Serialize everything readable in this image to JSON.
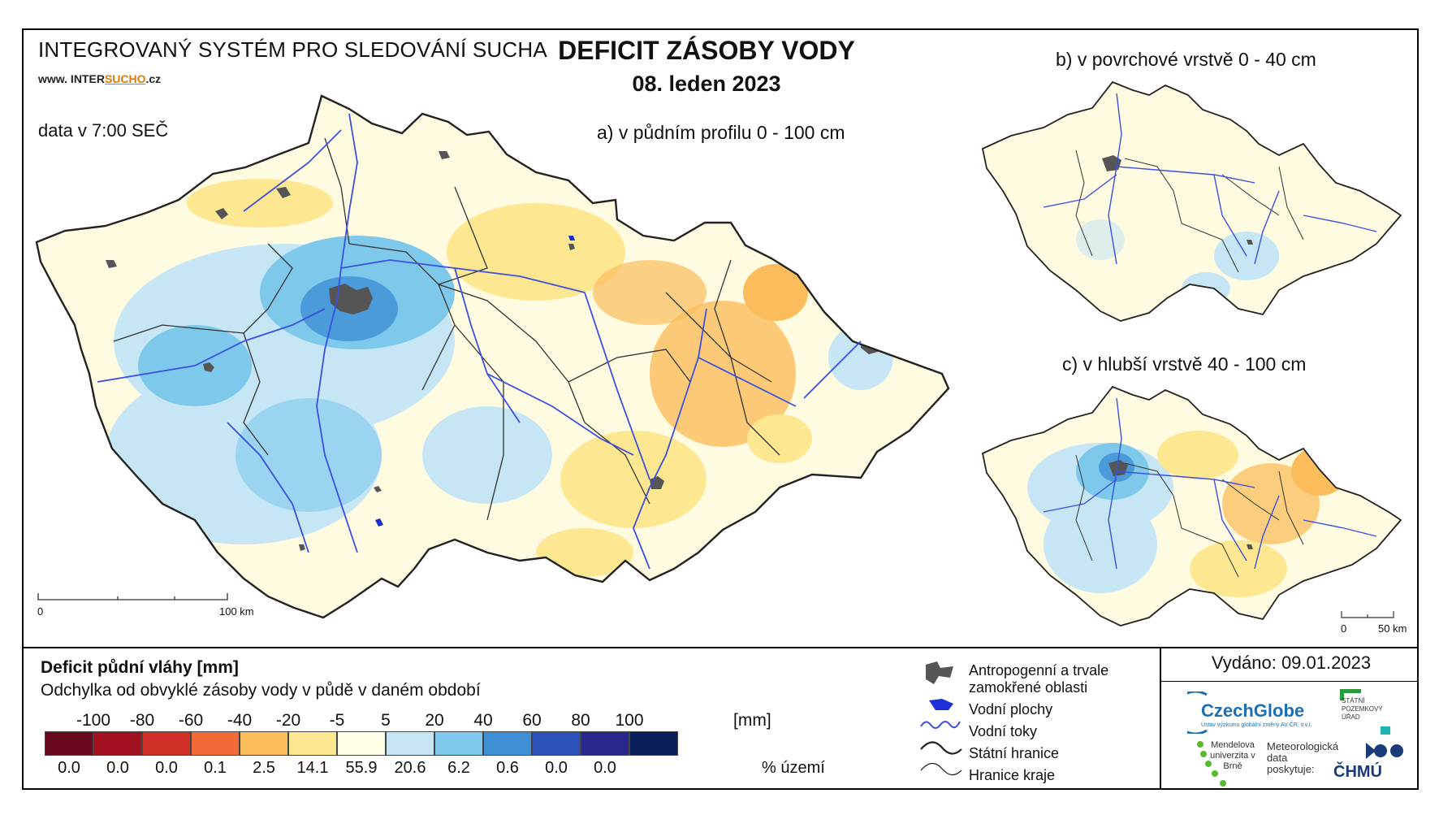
{
  "header": {
    "system_title": "INTEGROVANÝ SYSTÉM PRO SLEDOVÁNÍ SUCHA",
    "website_prefix": "www. INTER",
    "website_brand": "SUCHO",
    "website_suffix": ".cz",
    "data_time": "data v 7:00 SEČ",
    "main_title": "DEFICIT ZÁSOBY VODY",
    "date": "08. leden 2023"
  },
  "maps": {
    "a_title": "a) v půdním profilu 0 - 100 cm",
    "b_title": "b) v povrchové vrstvě 0 - 40 cm",
    "c_title": "c) v hlubší vrstvě 40 - 100 cm",
    "scale_main": {
      "zero": "0",
      "end": "100 km"
    },
    "scale_small": {
      "zero": "0",
      "end": "50 km"
    }
  },
  "legend": {
    "title": "Deficit půdní vláhy  [mm]",
    "subtitle": "Odchylka od obvyklé zásoby vody v půdě v daném období",
    "ticks": [
      "-100",
      "-80",
      "-60",
      "-40",
      "-20",
      "-5",
      "5",
      "20",
      "40",
      "60",
      "80",
      "100"
    ],
    "unit": "[mm]",
    "classes": [
      {
        "color": "#6b0a1e",
        "percent": "0.0"
      },
      {
        "color": "#a0101e",
        "percent": "0.0"
      },
      {
        "color": "#d03028",
        "percent": "0.0"
      },
      {
        "color": "#f26a38",
        "percent": "0.1"
      },
      {
        "color": "#fbbd5c",
        "percent": "2.5"
      },
      {
        "color": "#fde790",
        "percent": "14.1"
      },
      {
        "color": "#fffde4",
        "percent": "55.9"
      },
      {
        "color": "#c6e6f5",
        "percent": "20.6"
      },
      {
        "color": "#7ec8ec",
        "percent": "6.2"
      },
      {
        "color": "#3f8fd4",
        "percent": "0.6"
      },
      {
        "color": "#2a52b8",
        "percent": "0.0"
      },
      {
        "color": "#27268a",
        "percent": "0.0"
      },
      {
        "color": "#0b1f5a",
        "percent": ""
      }
    ],
    "percent_unit": "% území"
  },
  "symbols": {
    "anthropogenic_line1": "Antropogenní a trvale",
    "anthropogenic_line2": "zamokřené oblasti",
    "water_bodies": "Vodní plochy",
    "rivers": "Vodní toky",
    "state_border": "Státní hranice",
    "region_border": "Hranice kraje"
  },
  "footer": {
    "issued": "Vydáno: 09.01.2023",
    "czechglobe": "CzechGlobe",
    "czechglobe_sub": "Ústav výzkumu globální změny AV ČR, v.v.i.",
    "spu": "STÁTNÍ POZEMKOVÝ ÚŘAD",
    "mendel": "Mendelova univerzita v Brně",
    "meteo": "Meteorologická data poskytuje:",
    "chmu": "ČHMÚ"
  },
  "colors": {
    "river": "#3b4fe0",
    "urban": "#555555",
    "border": "#222222",
    "czechglobe": "#1a6fb5",
    "mendel_green": "#5cb82e",
    "spu_green": "#2a9a3a",
    "chmu_blue": "#1a3a7a"
  }
}
